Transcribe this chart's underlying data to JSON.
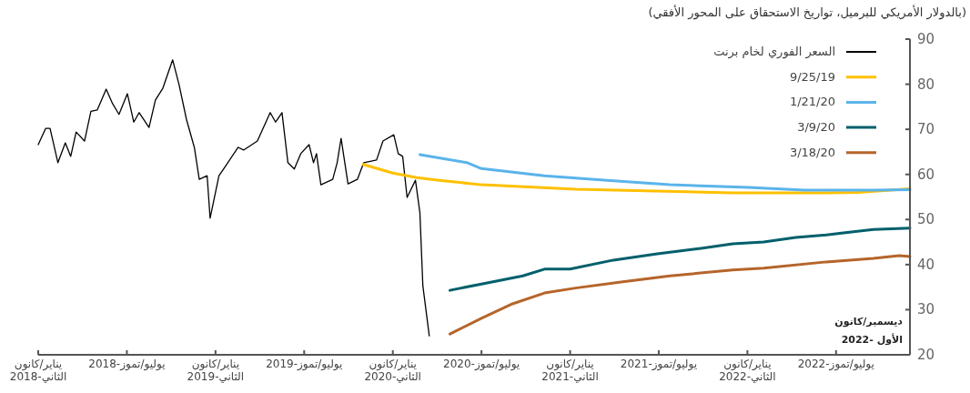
{
  "chart_data": {
    "type": "line",
    "title": "(بالدولار الأمريكي للبرميل، تواريخ الاستحقاق على المحور الأفقي)",
    "xlim": [
      "2018-01-01",
      "2022-12-01"
    ],
    "xticks": [
      {
        "value": "2018-01-01",
        "label": "يناير/كانون الثاني-2018"
      },
      {
        "value": "2018-07-01",
        "label": "يوليو/تموز-2018"
      },
      {
        "value": "2019-01-01",
        "label": "يناير/كانون الثاني-2019"
      },
      {
        "value": "2019-07-01",
        "label": "يوليو/تموز-2019"
      },
      {
        "value": "2020-01-01",
        "label": "يناير/كانون الثاني-2020"
      },
      {
        "value": "2020-07-01",
        "label": "يوليو/تموز-2020"
      },
      {
        "value": "2021-01-01",
        "label": "يناير/كانون الثاني-2021"
      },
      {
        "value": "2021-07-01",
        "label": "يوليو/تموز-2021"
      },
      {
        "value": "2022-01-01",
        "label": "يناير/كانون الثاني-2022"
      },
      {
        "value": "2022-07-01",
        "label": "يوليو/تموز-2022"
      }
    ],
    "ylim": [
      20,
      90
    ],
    "yticks": [
      20,
      30,
      40,
      50,
      60,
      70,
      80,
      90
    ],
    "legend": "top right",
    "annotations": [
      "ديسمبر/كانون الأول -2022"
    ],
    "series": [
      {
        "name": "السعر الفوري لخام برنت",
        "color": "#000000",
        "line_style": "solid",
        "x": [
          "2018-01-01",
          "2018-01-16",
          "2018-01-25",
          "2018-02-11",
          "2018-02-26",
          "2018-03-07",
          "2018-03-18",
          "2018-04-05",
          "2018-04-18",
          "2018-05-01",
          "2018-05-19",
          "2018-06-02",
          "2018-06-15",
          "2018-07-02",
          "2018-07-15",
          "2018-07-26",
          "2018-08-16",
          "2018-08-29",
          "2018-09-14",
          "2018-10-04",
          "2018-10-17",
          "2018-11-02",
          "2018-11-18",
          "2018-11-28",
          "2018-12-14",
          "2018-12-20",
          "2019-01-08",
          "2019-01-21",
          "2019-02-17",
          "2019-02-28",
          "2019-03-26",
          "2019-04-22",
          "2019-05-03",
          "2019-05-16",
          "2019-05-28",
          "2019-06-11",
          "2019-06-24",
          "2019-07-11",
          "2019-07-20",
          "2019-07-26",
          "2019-08-05",
          "2019-08-29",
          "2019-09-08",
          "2019-09-16",
          "2019-09-30",
          "2019-10-19",
          "2019-11-02",
          "2019-11-28",
          "2019-12-11",
          "2020-01-03",
          "2020-01-12",
          "2020-01-21",
          "2020-01-30",
          "2020-02-17",
          "2020-02-26",
          "2020-03-02",
          "2020-03-15"
        ],
        "values": [
          66.6,
          70.2,
          70.2,
          62.6,
          67,
          64,
          69.4,
          67.4,
          74,
          74.3,
          78.9,
          75.7,
          73.3,
          77.9,
          71.6,
          73.7,
          70.4,
          76.5,
          79.1,
          85.4,
          79.9,
          72.2,
          66,
          58.9,
          59.7,
          50.3,
          59.7,
          61.8,
          66,
          65.4,
          67.4,
          73.7,
          71.6,
          73.7,
          62.6,
          61.2,
          64.6,
          66.6,
          62.6,
          64.6,
          57.7,
          58.9,
          62.6,
          68,
          57.9,
          58.9,
          62.6,
          63.2,
          67.4,
          68.8,
          64.6,
          64,
          54.9,
          58.7,
          51.5,
          35.3,
          24.2
        ]
      },
      {
        "name": "9/25/19",
        "color": "#ffc000",
        "x": [
          "2019-11-01",
          "2020-01-01",
          "2020-02-20",
          "2020-04-05",
          "2020-07-01",
          "2021-01-12",
          "2021-12-01",
          "2022-06-11",
          "2022-08-16",
          "2022-12-01"
        ],
        "values": [
          62.2,
          60.3,
          59.3,
          58.7,
          57.7,
          56.7,
          55.9,
          55.9,
          56.0,
          56.8
        ]
      },
      {
        "name": "1/21/20",
        "color": "#5ab4ea",
        "x": [
          "2020-02-26",
          "2020-06-02",
          "2020-07-01",
          "2020-11-09",
          "2021-03-16",
          "2021-07-24",
          "2022-01-03",
          "2022-04-27",
          "2022-09-17",
          "2022-12-01"
        ],
        "values": [
          64.4,
          62.6,
          61.3,
          59.7,
          58.7,
          57.7,
          57.1,
          56.5,
          56.5,
          56.6
        ]
      },
      {
        "name": "3/9/20",
        "color": "#005f6b",
        "x": [
          "2020-04-27",
          "2020-07-01",
          "2020-09-25",
          "2020-11-09",
          "2021-01-01",
          "2021-03-29",
          "2021-06-28",
          "2021-09-27",
          "2021-12-01",
          "2022-02-04",
          "2022-04-09",
          "2022-06-11",
          "2022-09-17",
          "2022-12-01"
        ],
        "values": [
          34.3,
          35.7,
          37.5,
          39,
          39,
          41,
          42.4,
          43.6,
          44.6,
          45,
          46,
          46.6,
          47.8,
          48.1
        ]
      },
      {
        "name": "3/18/20",
        "color": "#b5652a",
        "x": [
          "2020-04-27",
          "2020-07-01",
          "2020-09-04",
          "2020-11-09",
          "2021-01-12",
          "2021-04-18",
          "2021-07-24",
          "2021-12-01",
          "2022-02-04",
          "2022-06-11",
          "2022-09-17",
          "2022-11-09",
          "2022-12-01"
        ],
        "values": [
          24.6,
          28.1,
          31.3,
          33.7,
          34.8,
          36.2,
          37.5,
          38.8,
          39.2,
          40.6,
          41.4,
          42,
          41.8
        ]
      }
    ]
  }
}
